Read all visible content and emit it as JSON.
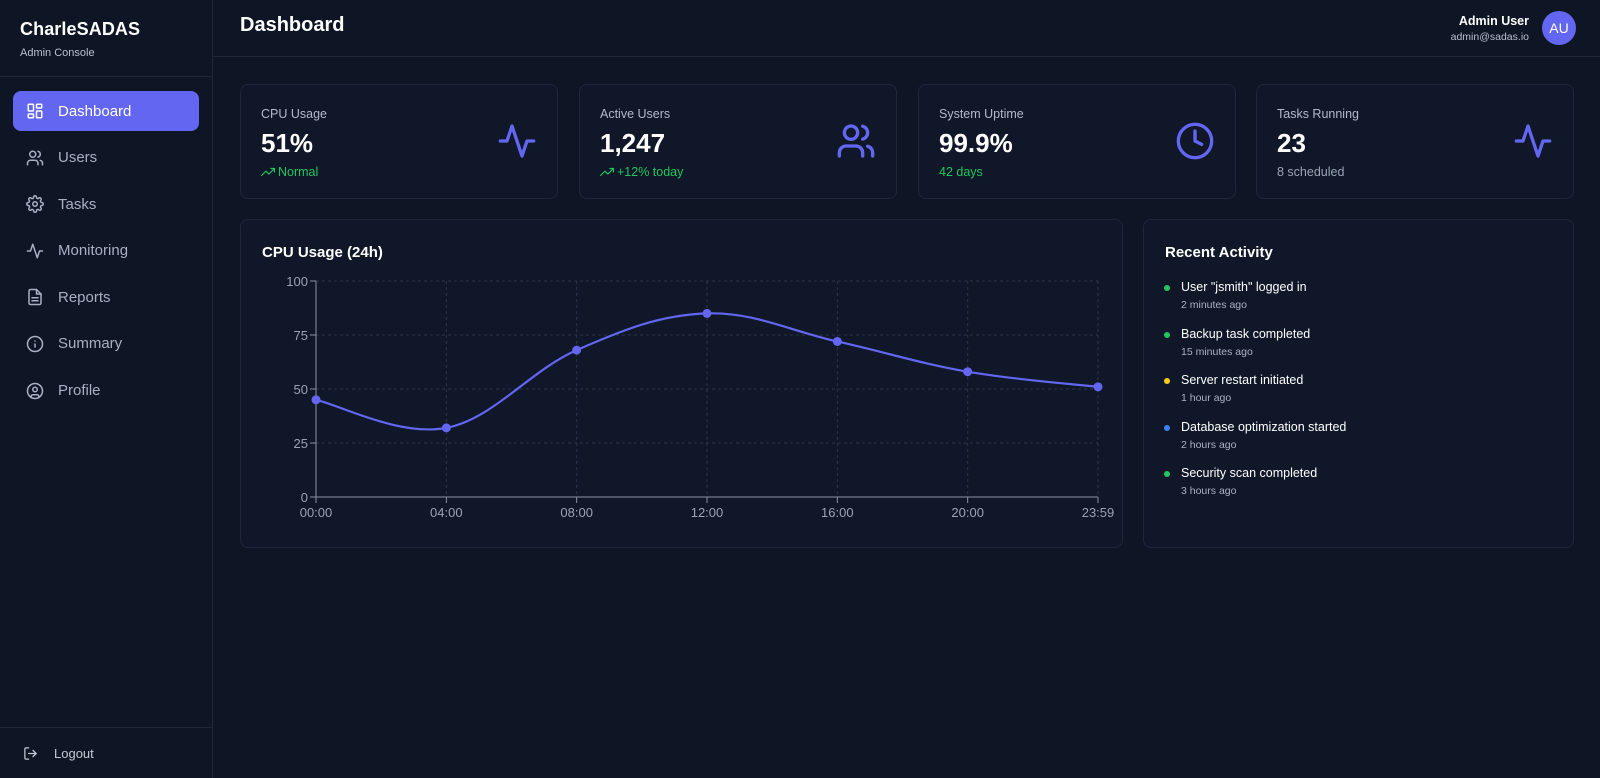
{
  "brand": {
    "title": "CharleSADAS",
    "subtitle": "Admin Console"
  },
  "sidebar": {
    "items": [
      {
        "label": "Dashboard",
        "icon": "dashboard-icon",
        "active": true
      },
      {
        "label": "Users",
        "icon": "users-icon"
      },
      {
        "label": "Tasks",
        "icon": "gear-icon"
      },
      {
        "label": "Monitoring",
        "icon": "activity-icon"
      },
      {
        "label": "Reports",
        "icon": "document-icon"
      },
      {
        "label": "Summary",
        "icon": "info-icon"
      },
      {
        "label": "Profile",
        "icon": "user-circle-icon"
      }
    ],
    "logout_label": "Logout"
  },
  "header": {
    "title": "Dashboard",
    "user_name": "Admin User",
    "user_email": "admin@sadas.io",
    "avatar_initials": "AU"
  },
  "stats": [
    {
      "label": "CPU Usage",
      "value": "51%",
      "sub": "Normal",
      "icon": "activity-icon"
    },
    {
      "label": "Active Users",
      "value": "1,247",
      "sub": "+12% today",
      "icon": "users-icon"
    },
    {
      "label": "System Uptime",
      "value": "99.9%",
      "sub": "42 days",
      "icon": "clock-icon"
    },
    {
      "label": "Tasks Running",
      "value": "23",
      "sub": "8 scheduled",
      "icon": "activity-icon"
    }
  ],
  "colors": {
    "accent": "#6366f1",
    "success": "#22c55e",
    "warning": "#facc15",
    "info": "#3b82f6"
  },
  "chart_data": {
    "type": "line",
    "title": "CPU Usage (24h)",
    "x": [
      "00:00",
      "04:00",
      "08:00",
      "12:00",
      "16:00",
      "20:00",
      "23:59"
    ],
    "values": [
      45,
      32,
      68,
      85,
      72,
      58,
      51
    ],
    "y_ticks": [
      0,
      25,
      50,
      75,
      100
    ],
    "ylim": [
      0,
      100
    ],
    "grid": true,
    "color": "#6366f1"
  },
  "activity": {
    "title": "Recent Activity",
    "items": [
      {
        "text": "User \"jsmith\" logged in",
        "time": "2 minutes ago",
        "color": "#22c55e"
      },
      {
        "text": "Backup task completed",
        "time": "15 minutes ago",
        "color": "#22c55e"
      },
      {
        "text": "Server restart initiated",
        "time": "1 hour ago",
        "color": "#facc15"
      },
      {
        "text": "Database optimization started",
        "time": "2 hours ago",
        "color": "#3b82f6"
      },
      {
        "text": "Security scan completed",
        "time": "3 hours ago",
        "color": "#22c55e"
      }
    ]
  }
}
